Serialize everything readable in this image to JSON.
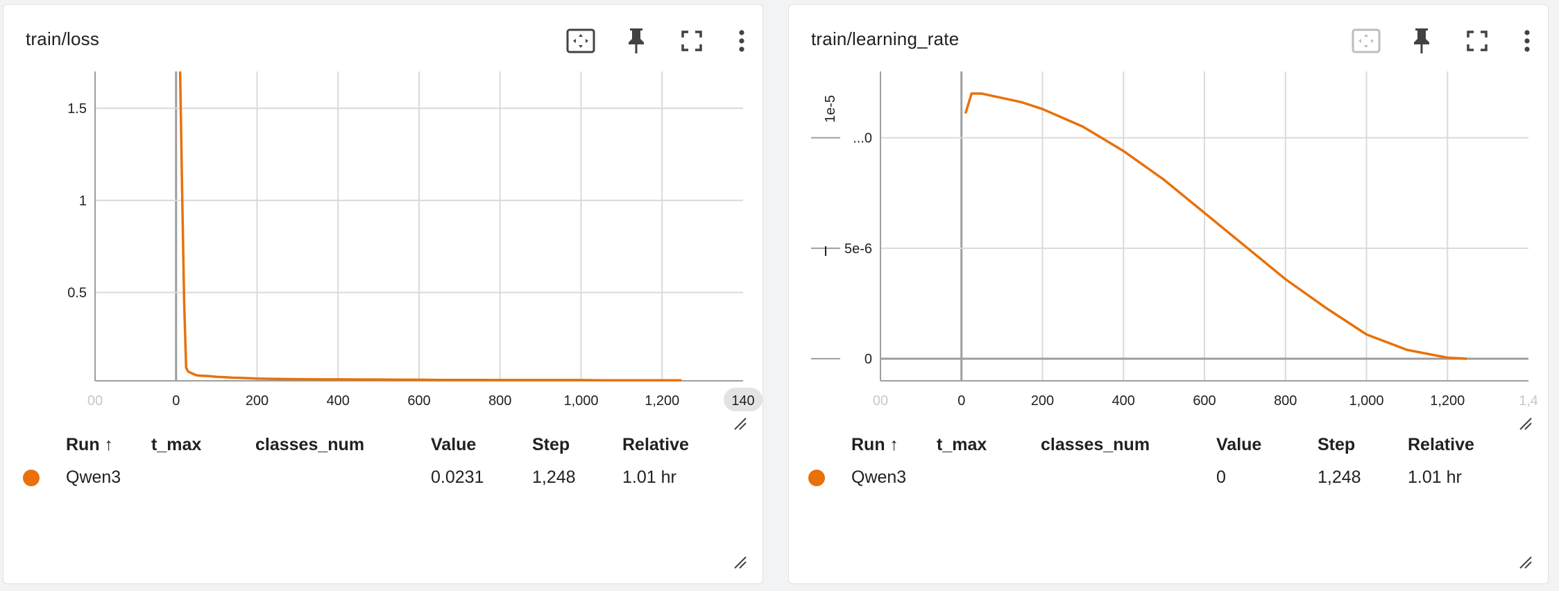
{
  "cards": [
    {
      "title": "train/loss",
      "chart_data": {
        "type": "line",
        "title": "train/loss",
        "xlabel": "",
        "ylabel": "",
        "xlim": [
          -200,
          1400
        ],
        "ylim": [
          0.02,
          1.7
        ],
        "x_ticks": [
          "00",
          "0",
          "200",
          "400",
          "600",
          "800",
          "1,000",
          "1,200",
          "140"
        ],
        "x_tick_values": [
          -200,
          0,
          200,
          400,
          600,
          800,
          1000,
          1200,
          1400
        ],
        "y_ticks": [
          "0.5",
          "1",
          "1.5"
        ],
        "y_tick_values": [
          0.5,
          1,
          1.5
        ],
        "y_multiplier": "",
        "grid": true,
        "series": [
          {
            "color": "#e8710a",
            "x": [
              10,
              15,
              20,
              25,
              30,
              40,
              50,
              60,
              80,
              100,
              120,
              140,
              160,
              180,
              200,
              250,
              300,
              350,
              400,
              450,
              500,
              550,
              600,
              650,
              700,
              750,
              800,
              850,
              900,
              950,
              1000,
              1050,
              1100,
              1150,
              1200,
              1248
            ],
            "y": [
              1.7,
              1.05,
              0.45,
              0.09,
              0.07,
              0.06,
              0.05,
              0.048,
              0.046,
              0.042,
              0.04,
              0.037,
              0.036,
              0.034,
              0.032,
              0.03,
              0.029,
              0.028,
              0.028,
              0.027,
              0.027,
              0.026,
              0.026,
              0.025,
              0.025,
              0.025,
              0.024,
              0.024,
              0.024,
              0.024,
              0.024,
              0.023,
              0.023,
              0.023,
              0.023,
              0.0231
            ]
          }
        ]
      },
      "table": {
        "headers": [
          "Run ↑",
          "t_max",
          "classes_num",
          "Value",
          "Step",
          "Relative"
        ],
        "rows": [
          [
            "Qwen3",
            "",
            "",
            "0.0231",
            "1,248",
            "1.01 hr"
          ]
        ]
      }
    },
    {
      "title": "train/learning_rate",
      "chart_data": {
        "type": "line",
        "title": "train/learning_rate",
        "xlabel": "",
        "ylabel": "",
        "xlim": [
          -200,
          1400
        ],
        "ylim": [
          -1e-06,
          1.3e-05
        ],
        "x_ticks": [
          "00",
          "0",
          "200",
          "400",
          "600",
          "800",
          "1,000",
          "1,200",
          "1,4"
        ],
        "x_tick_values": [
          -200,
          0,
          200,
          400,
          600,
          800,
          1000,
          1200,
          1400
        ],
        "y_ticks": [
          "0",
          "5e-6",
          "...0"
        ],
        "y_tick_values": [
          0,
          5e-06,
          1e-05
        ],
        "y_multiplier": "1e-5",
        "grid": true,
        "series": [
          {
            "color": "#e8710a",
            "x": [
              10,
              25,
              50,
              100,
              150,
              200,
              300,
              400,
              500,
              600,
              700,
              800,
              900,
              1000,
              1100,
              1200,
              1248
            ],
            "y": [
              1.11e-05,
              1.2e-05,
              1.2e-05,
              1.18e-05,
              1.16e-05,
              1.13e-05,
              1.05e-05,
              9.4e-06,
              8.1e-06,
              6.6e-06,
              5.1e-06,
              3.6e-06,
              2.3e-06,
              1.1e-06,
              4e-07,
              5e-08,
              0
            ]
          }
        ]
      },
      "table": {
        "headers": [
          "Run ↑",
          "t_max",
          "classes_num",
          "Value",
          "Step",
          "Relative"
        ],
        "rows": [
          [
            "Qwen3",
            "",
            "",
            "0",
            "1,248",
            "1.01 hr"
          ]
        ]
      }
    }
  ],
  "icons": {
    "fit": "fit-to-domain-icon",
    "pin": "pin-icon",
    "fullscreen": "fullscreen-icon",
    "more": "more-vert-icon",
    "resize": "resize-handle-icon"
  },
  "colors": {
    "series": "#e8710a",
    "grid": "#dadada",
    "axis": "#9e9e9e"
  }
}
